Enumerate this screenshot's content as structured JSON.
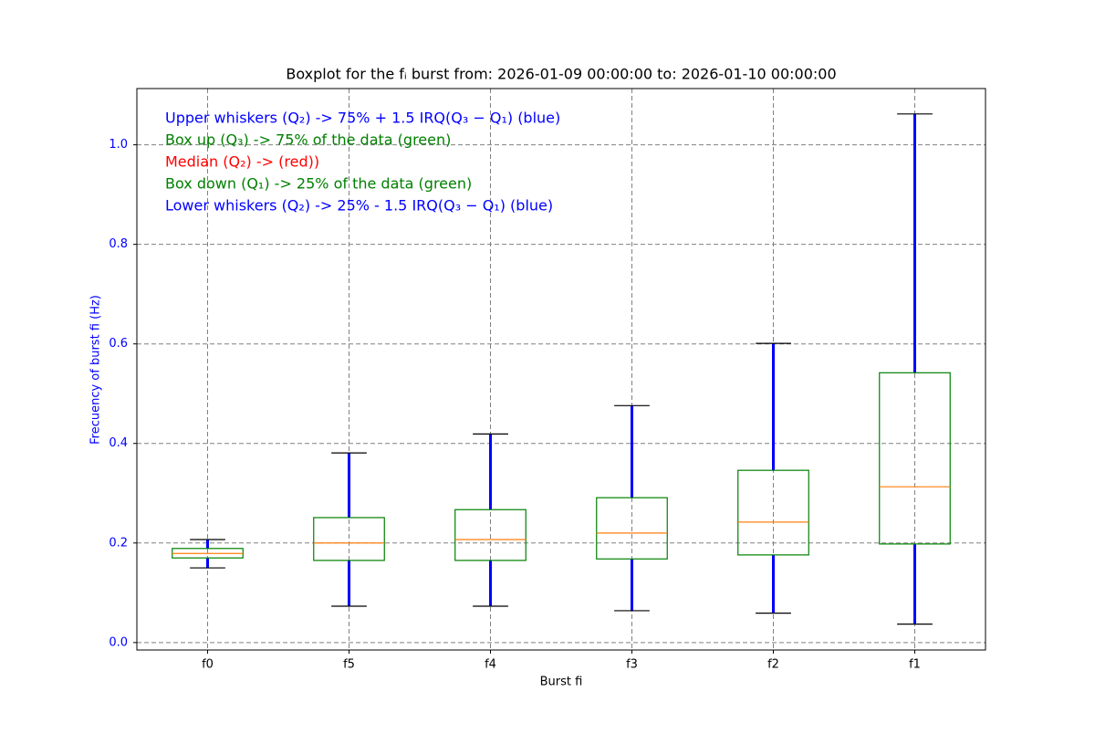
{
  "chart_data": {
    "type": "box",
    "title": "Boxplot for the fᵢ burst from: 2026-01-09 00:00:00 to: 2026-01-10 00:00:00",
    "x_label": "Burst fi",
    "y_label": "Frecuency of burst fi (Hz)",
    "categories": [
      "f0",
      "f5",
      "f4",
      "f3",
      "f2",
      "f1"
    ],
    "boxes": [
      {
        "whislo": 0.15,
        "q1": 0.17,
        "med": 0.179,
        "q3": 0.189,
        "whishi": 0.207
      },
      {
        "whislo": 0.073,
        "q1": 0.165,
        "med": 0.2,
        "q3": 0.251,
        "whishi": 0.381
      },
      {
        "whislo": 0.073,
        "q1": 0.165,
        "med": 0.207,
        "q3": 0.267,
        "whishi": 0.419
      },
      {
        "whislo": 0.064,
        "q1": 0.168,
        "med": 0.22,
        "q3": 0.291,
        "whishi": 0.476
      },
      {
        "whislo": 0.059,
        "q1": 0.176,
        "med": 0.242,
        "q3": 0.346,
        "whishi": 0.601
      },
      {
        "whislo": 0.037,
        "q1": 0.198,
        "med": 0.313,
        "q3": 0.542,
        "whishi": 1.062
      }
    ],
    "box_color": "#008000",
    "median_color": "#ff7f0e",
    "whisker_color": "#0000ff",
    "cap_color": "#000000",
    "ylim": [
      -0.015,
      1.113
    ],
    "yticks": [
      {
        "value": 0,
        "label": "0.0"
      },
      0.2,
      0.4,
      0.6,
      0.8,
      {
        "value": 1,
        "label": "1.0"
      }
    ],
    "grid": true,
    "annotations": [
      {
        "text": "Upper whiskers (Q₂) -> 75% + 1.5 IRQ(Q₃ − Q₁) (blue)",
        "color": "#0000ff"
      },
      {
        "text": "Box up (Q₃) -> 75% of the data (green)",
        "color": "#008000"
      },
      {
        "text": "Median (Q₂) -> (red))",
        "color": "#ff0000"
      },
      {
        "text": "Box down (Q₁) -> 25% of the data (green)",
        "color": "#008000"
      },
      {
        "text": "Lower whiskers (Q₂) -> 25% - 1.5 IRQ(Q₃ − Q₁) (blue)",
        "color": "#0000ff"
      }
    ]
  }
}
